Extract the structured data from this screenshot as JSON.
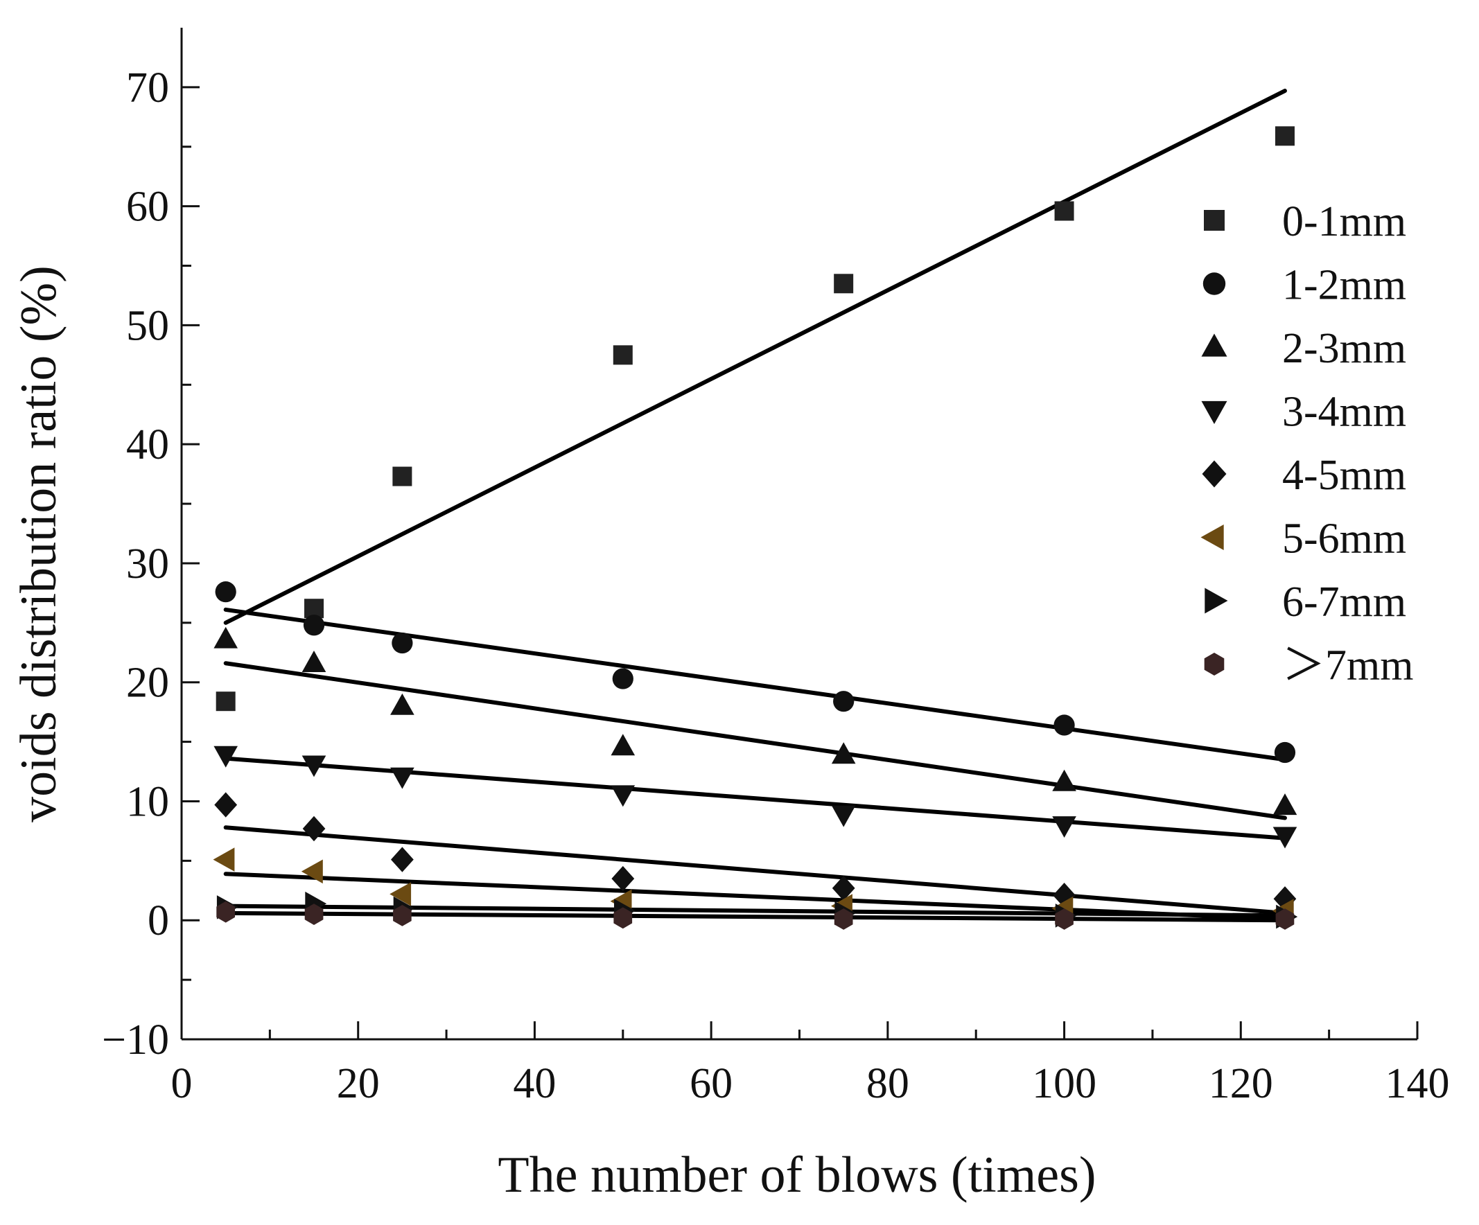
{
  "chart_data": {
    "type": "scatter",
    "xlabel": "The number of blows (times)",
    "ylabel": "voids distribution ratio (%)",
    "xlim": [
      0,
      140
    ],
    "ylim": [
      -10,
      75
    ],
    "x_ticks": [
      0,
      20,
      40,
      60,
      80,
      100,
      120,
      140
    ],
    "x_tick_labels": [
      "0",
      "20",
      "40",
      "60",
      "80",
      "100",
      "120",
      "140"
    ],
    "y_ticks": [
      -10,
      0,
      10,
      20,
      30,
      40,
      50,
      60,
      70
    ],
    "y_tick_labels": [
      "−10",
      "0",
      "10",
      "20",
      "30",
      "40",
      "50",
      "60",
      "70"
    ],
    "legend_position": "right",
    "x": [
      5,
      15,
      25,
      50,
      75,
      100,
      125
    ],
    "series": [
      {
        "name": "0-1mm",
        "marker": "square",
        "color": "#222222",
        "values": [
          18.4,
          26.2,
          37.3,
          47.5,
          53.5,
          59.6,
          65.9
        ],
        "fit": [
          5,
          25.0,
          125,
          69.7
        ]
      },
      {
        "name": "1-2mm",
        "marker": "circle",
        "color": "#111111",
        "values": [
          27.6,
          24.8,
          23.3,
          20.3,
          18.4,
          16.4,
          14.1
        ],
        "fit": [
          5,
          26.1,
          125,
          13.5
        ]
      },
      {
        "name": "2-3mm",
        "marker": "triangle-up",
        "color": "#111111",
        "values": [
          23.6,
          21.6,
          18.0,
          14.6,
          13.9,
          11.6,
          9.6
        ],
        "fit": [
          5,
          21.6,
          125,
          8.6
        ]
      },
      {
        "name": "3-4mm",
        "marker": "triangle-down",
        "color": "#111111",
        "values": [
          13.9,
          13.1,
          12.1,
          10.6,
          8.9,
          8.0,
          7.1
        ],
        "fit": [
          5,
          13.6,
          125,
          6.9
        ]
      },
      {
        "name": "4-5mm",
        "marker": "diamond",
        "color": "#111111",
        "values": [
          9.7,
          7.7,
          5.1,
          3.5,
          2.7,
          2.1,
          1.8
        ],
        "fit": [
          5,
          7.8,
          125,
          0.6
        ]
      },
      {
        "name": "5-6mm",
        "marker": "triangle-left",
        "color": "#6b4a12",
        "values": [
          5.1,
          4.1,
          2.2,
          1.6,
          1.2,
          1.0,
          0.8
        ],
        "fit": [
          5,
          3.9,
          125,
          0.1
        ]
      },
      {
        "name": "6-7mm",
        "marker": "triangle-right",
        "color": "#111111",
        "values": [
          1.1,
          1.4,
          1.0,
          0.8,
          0.6,
          0.4,
          0.3
        ],
        "fit": [
          5,
          1.2,
          125,
          0.4
        ]
      },
      {
        "name": "＞7mm",
        "marker": "hexagon",
        "color": "#3a2424",
        "values": [
          0.7,
          0.5,
          0.4,
          0.2,
          0.1,
          0.1,
          0.1
        ],
        "fit": [
          5,
          0.6,
          125,
          0.0
        ]
      }
    ]
  }
}
